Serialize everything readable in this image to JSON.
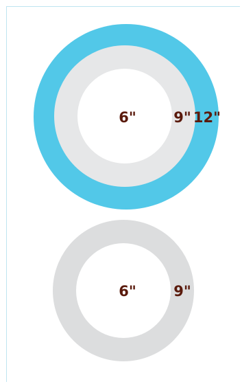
{
  "diagram_top": {
    "outer_ring": {
      "label": "12\"",
      "color": "#52c8e8"
    },
    "middle_ring": {
      "label": "9\"",
      "color": "#e6e7e8"
    },
    "inner_circle": {
      "label": "6\"",
      "color": "#ffffff"
    }
  },
  "diagram_bottom": {
    "ring": {
      "label": "9\"",
      "color": "#dcddde"
    },
    "inner_circle": {
      "label": "6\"",
      "color": "#ffffff"
    }
  },
  "label_color": "#5a1a0c"
}
